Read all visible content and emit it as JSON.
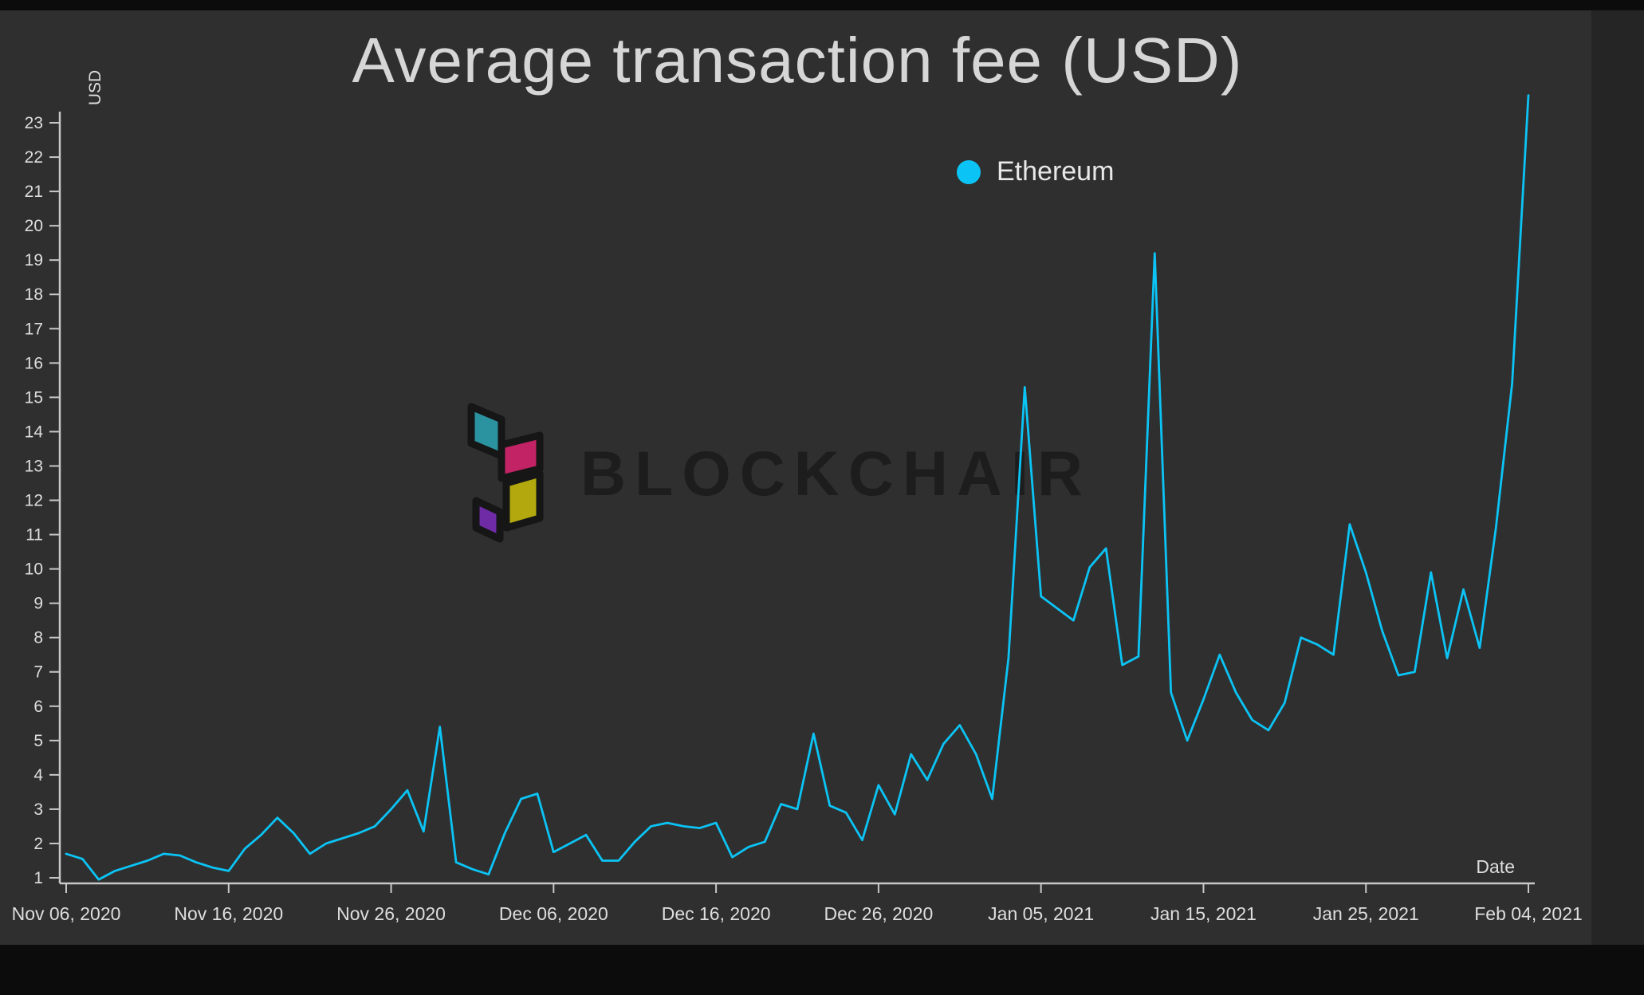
{
  "watermark": {
    "text": "BLOCKCHAIR",
    "logo_colors": {
      "teal": "#2b93a0",
      "magenta": "#c22364",
      "yellow": "#b3a90f",
      "purple": "#6f2ba5",
      "outline": "#161616"
    }
  },
  "colors": {
    "series_line": "#0bc4f5",
    "axis": "#c8c8c8",
    "tick_text": "#dedede"
  },
  "chart_data": {
    "type": "line",
    "title": "Average transaction fee (USD)",
    "xlabel": "Date",
    "ylabel": "USD",
    "grid": false,
    "legend_position": "top-right-of-center",
    "line_color": "#0bc4f5",
    "ylim": [
      1,
      23
    ],
    "y_ticks": [
      1,
      2,
      3,
      4,
      5,
      6,
      7,
      8,
      9,
      10,
      11,
      12,
      13,
      14,
      15,
      16,
      17,
      18,
      19,
      20,
      21,
      22,
      23
    ],
    "x_ticks": [
      {
        "day": 0,
        "label": "Nov 06, 2020"
      },
      {
        "day": 10,
        "label": "Nov 16, 2020"
      },
      {
        "day": 20,
        "label": "Nov 26, 2020"
      },
      {
        "day": 30,
        "label": "Dec 06, 2020"
      },
      {
        "day": 40,
        "label": "Dec 16, 2020"
      },
      {
        "day": 50,
        "label": "Dec 26, 2020"
      },
      {
        "day": 60,
        "label": "Jan 05, 2021"
      },
      {
        "day": 70,
        "label": "Jan 15, 2021"
      },
      {
        "day": 80,
        "label": "Jan 25, 2021"
      },
      {
        "day": 90,
        "label": "Feb 04, 2021"
      }
    ],
    "series": [
      {
        "name": "Ethereum",
        "dates": [
          "2020-11-06",
          "2020-11-07",
          "2020-11-08",
          "2020-11-09",
          "2020-11-10",
          "2020-11-11",
          "2020-11-12",
          "2020-11-13",
          "2020-11-14",
          "2020-11-15",
          "2020-11-16",
          "2020-11-17",
          "2020-11-18",
          "2020-11-19",
          "2020-11-20",
          "2020-11-21",
          "2020-11-22",
          "2020-11-23",
          "2020-11-24",
          "2020-11-25",
          "2020-11-26",
          "2020-11-27",
          "2020-11-28",
          "2020-11-29",
          "2020-11-30",
          "2020-12-01",
          "2020-12-02",
          "2020-12-03",
          "2020-12-04",
          "2020-12-05",
          "2020-12-06",
          "2020-12-07",
          "2020-12-08",
          "2020-12-09",
          "2020-12-10",
          "2020-12-11",
          "2020-12-12",
          "2020-12-13",
          "2020-12-14",
          "2020-12-15",
          "2020-12-16",
          "2020-12-17",
          "2020-12-18",
          "2020-12-19",
          "2020-12-20",
          "2020-12-21",
          "2020-12-22",
          "2020-12-23",
          "2020-12-24",
          "2020-12-25",
          "2020-12-26",
          "2020-12-27",
          "2020-12-28",
          "2020-12-29",
          "2020-12-30",
          "2020-12-31",
          "2021-01-01",
          "2021-01-02",
          "2021-01-03",
          "2021-01-04",
          "2021-01-05",
          "2021-01-06",
          "2021-01-07",
          "2021-01-08",
          "2021-01-09",
          "2021-01-10",
          "2021-01-11",
          "2021-01-12",
          "2021-01-13",
          "2021-01-14",
          "2021-01-15",
          "2021-01-16",
          "2021-01-17",
          "2021-01-18",
          "2021-01-19",
          "2021-01-20",
          "2021-01-21",
          "2021-01-22",
          "2021-01-23",
          "2021-01-24",
          "2021-01-25",
          "2021-01-26",
          "2021-01-27",
          "2021-01-28",
          "2021-01-29",
          "2021-01-30",
          "2021-01-31",
          "2021-02-01",
          "2021-02-02",
          "2021-02-03",
          "2021-02-04"
        ],
        "values": [
          1.7,
          1.55,
          0.95,
          1.2,
          1.35,
          1.5,
          1.7,
          1.65,
          1.45,
          1.3,
          1.2,
          1.85,
          2.25,
          2.75,
          2.3,
          1.7,
          2.0,
          2.15,
          2.3,
          2.5,
          3.0,
          3.55,
          2.35,
          5.4,
          1.45,
          1.25,
          1.1,
          2.3,
          3.3,
          3.45,
          1.75,
          2.0,
          2.25,
          1.5,
          1.5,
          2.05,
          2.5,
          2.6,
          2.5,
          2.45,
          2.6,
          1.6,
          1.9,
          2.05,
          3.15,
          3.0,
          5.2,
          3.1,
          2.9,
          2.1,
          3.7,
          2.85,
          4.6,
          3.85,
          4.9,
          5.45,
          4.6,
          3.3,
          7.4,
          15.3,
          9.2,
          8.85,
          8.5,
          10.05,
          10.6,
          7.2,
          7.45,
          19.2,
          6.4,
          5.0,
          6.2,
          7.5,
          6.4,
          5.6,
          5.3,
          6.1,
          8.0,
          7.8,
          7.5,
          11.3,
          9.9,
          8.2,
          6.9,
          7.0,
          9.9,
          7.4,
          9.4,
          7.7,
          11.2,
          15.4,
          23.8
        ]
      }
    ]
  }
}
